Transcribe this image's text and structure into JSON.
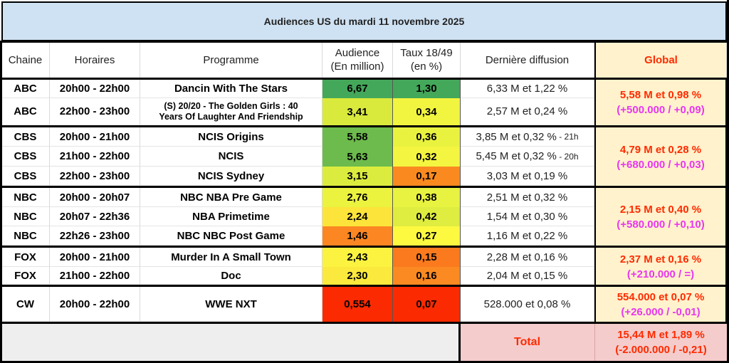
{
  "title": "Audiences US du mardi 11 novembre 2025",
  "headers": {
    "chaine": "Chaine",
    "horaires": "Horaires",
    "programme": "Programme",
    "audience_l1": "Audience",
    "audience_l2": "(En million)",
    "taux_l1": "Taux 18/49",
    "taux_l2": "(en %)",
    "derniere": "Dernière diffusion",
    "global": "Global"
  },
  "rows": [
    {
      "chaine": "ABC",
      "horaires": "20h00 - 22h00",
      "programme": "Dancin With The Stars",
      "audience": "6,67",
      "taux": "1,30",
      "derniere": "6,33 M et 1,22 %",
      "audience_color": "#44a85a",
      "taux_color": "#44a85a"
    },
    {
      "chaine": "ABC",
      "horaires": "22h00 - 23h00",
      "programme_l1": "(S) 20/20 - The Golden Girls : 40",
      "programme_l2": "Years Of Laughter And Friendship",
      "audience": "3,41",
      "taux": "0,34",
      "derniere": "2,57 M et 0,24 %",
      "audience_color": "#d9ea3d",
      "taux_color": "#f2f540"
    },
    {
      "chaine": "CBS",
      "horaires": "20h00 - 21h00",
      "programme": "NCIS Origins",
      "audience": "5,58",
      "taux": "0,36",
      "derniere": "3,85 M et 0,32 %",
      "derniere_note": " - 21h",
      "audience_color": "#6cbb4c",
      "taux_color": "#e9f23f"
    },
    {
      "chaine": "CBS",
      "horaires": "21h00 - 22h00",
      "programme": "NCIS",
      "audience": "5,63",
      "taux": "0,32",
      "derniere": "5,45 M et 0,32 %",
      "derniere_note": " - 20h",
      "audience_color": "#6cbb4c",
      "taux_color": "#f4f540"
    },
    {
      "chaine": "CBS",
      "horaires": "22h00 - 23h00",
      "programme": "NCIS Sydney",
      "audience": "3,15",
      "taux": "0,17",
      "derniere": "3,03 M et 0,19 %",
      "audience_color": "#dcec3e",
      "taux_color": "#fa8a20"
    },
    {
      "chaine": "NBC",
      "horaires": "20h00 - 20h07",
      "programme": "NBC NBA Pre Game",
      "audience": "2,76",
      "taux": "0,38",
      "derniere": "2,51 M et 0,32 %",
      "audience_color": "#ecf33f",
      "taux_color": "#e8f240"
    },
    {
      "chaine": "NBC",
      "horaires": "20h07 - 22h36",
      "programme": "NBA Primetime",
      "audience": "2,24",
      "taux": "0,42",
      "derniere": "1,54 M et 0,30 %",
      "audience_color": "#fce43a",
      "taux_color": "#deed3f"
    },
    {
      "chaine": "NBC",
      "horaires": "22h26 - 23h00",
      "programme": "NBC NBC Post Game",
      "audience": "1,46",
      "taux": "0,27",
      "derniere": "1,16 M et 0,22 %",
      "audience_color": "#fb8622",
      "taux_color": "#fdf940"
    },
    {
      "chaine": "FOX",
      "horaires": "20h00 - 21h00",
      "programme": "Murder In A Small Town",
      "audience": "2,43",
      "taux": "0,15",
      "derniere": "2,28 M et 0,16 %",
      "audience_color": "#fbf340",
      "taux_color": "#fb7a1e"
    },
    {
      "chaine": "FOX",
      "horaires": "21h00 - 22h00",
      "programme": "Doc",
      "audience": "2,30",
      "taux": "0,16",
      "derniere": "2,04 M et 0,15 %",
      "audience_color": "#fbe93d",
      "taux_color": "#fb8a22"
    },
    {
      "chaine": "CW",
      "horaires": "20h00 - 22h00",
      "programme": "WWE NXT",
      "audience": "0,554",
      "taux": "0,07",
      "derniere": "528.000 et 0,08 %",
      "audience_color": "#fc2a00",
      "taux_color": "#fc2a00"
    }
  ],
  "globals": [
    {
      "network": "ABC",
      "line1": "5,58 M et 0,98 %",
      "line2": "(+500.000 / +0,09)"
    },
    {
      "network": "CBS",
      "line1": "4,79 M et 0,28 %",
      "line2": "(+680.000 / +0,03)"
    },
    {
      "network": "NBC",
      "line1": "2,15 M et 0,40 %",
      "line2": "(+580.000 / +0,10)"
    },
    {
      "network": "FOX",
      "line1": "2,37 M et 0,16 %",
      "line2": "(+210.000 / =)"
    },
    {
      "network": "CW",
      "line1": "554.000 et 0,07 %",
      "line2": "(+26.000 / -0,01)"
    }
  ],
  "total": {
    "label": "Total",
    "line1": "15,44 M et 1,89 %",
    "line2": "(-2.000.000 / -0,21)"
  }
}
